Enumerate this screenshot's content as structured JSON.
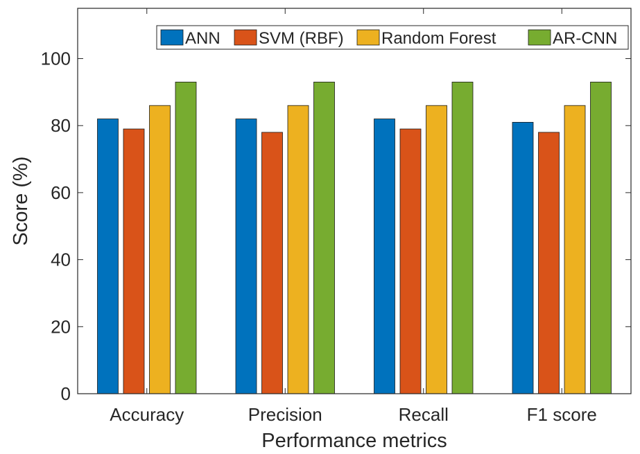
{
  "chart_data": {
    "type": "bar",
    "title": "",
    "xlabel": "Performance metrics",
    "ylabel": "Score (%)",
    "ylim": [
      0,
      115
    ],
    "yticks": [
      0,
      20,
      40,
      60,
      80,
      100
    ],
    "categories": [
      "Accuracy",
      "Precision",
      "Recall",
      "F1 score"
    ],
    "series": [
      {
        "name": "ANN",
        "color": "#0072BD",
        "values": [
          82,
          82,
          82,
          81
        ]
      },
      {
        "name": "SVM (RBF)",
        "color": "#D95319",
        "values": [
          79,
          78,
          79,
          78
        ]
      },
      {
        "name": "Random Forest",
        "color": "#EDB120",
        "values": [
          86,
          86,
          86,
          86
        ]
      },
      {
        "name": "AR-CNN",
        "color": "#77AC30",
        "values": [
          93,
          93,
          93,
          93
        ]
      }
    ],
    "grid": false,
    "legend_position": "top-right",
    "legend_orientation": "horizontal"
  }
}
